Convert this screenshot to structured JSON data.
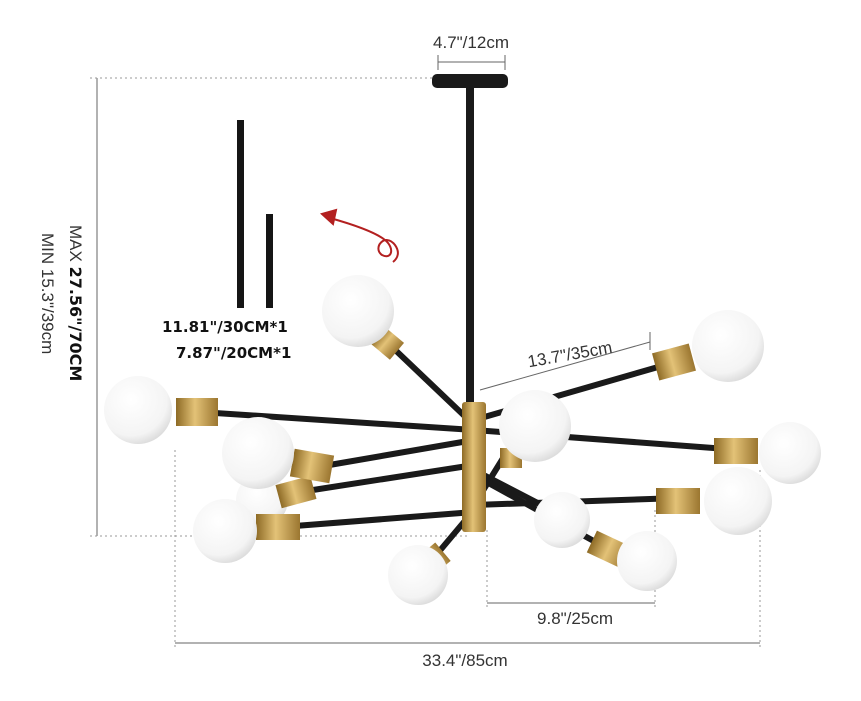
{
  "dimensions": {
    "canopy_width": "4.7\"/12cm",
    "height_max_prefix": "MAX ",
    "height_max": "27.56\"/70CM",
    "height_min": "MIN 15.3\"/39cm",
    "arm_length": "13.7\"/35cm",
    "inner_span": "9.8\"/25cm",
    "total_width": "33.4\"/85cm"
  },
  "extension_rods": [
    {
      "label": "11.81\"/30CM*1"
    },
    {
      "label": "7.87\"/20CM*1"
    }
  ],
  "colors": {
    "metal_black": "#1a1a1a",
    "brass": "#c9a24a",
    "bulb": "#ffffff",
    "arrow": "#b32020"
  }
}
